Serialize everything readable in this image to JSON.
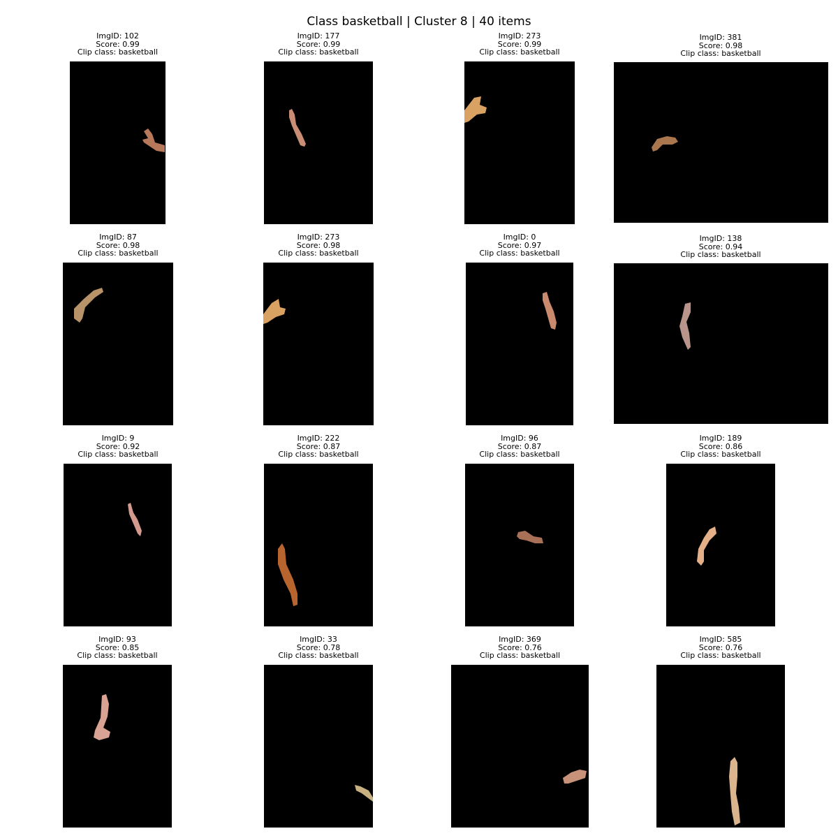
{
  "title": "Class basketball | Cluster 8 | 40 items",
  "tiles": [
    {
      "img_id": "ImgID: 102",
      "score": "Score: 0.99",
      "clip_class": "Clip class: basketball",
      "arm_color": "#b8785a"
    },
    {
      "img_id": "ImgID: 177",
      "score": "Score: 0.99",
      "clip_class": "Clip class: basketball",
      "arm_color": "#c88d74"
    },
    {
      "img_id": "ImgID: 273",
      "score": "Score: 0.99",
      "clip_class": "Clip class: basketball",
      "arm_color": "#d9a262"
    },
    {
      "img_id": "ImgID: 381",
      "score": "Score: 0.98",
      "clip_class": "Clip class: basketball",
      "arm_color": "#a9764e"
    },
    {
      "img_id": "ImgID: 87",
      "score": "Score: 0.98",
      "clip_class": "Clip class: basketball",
      "arm_color": "#b89268"
    },
    {
      "img_id": "ImgID: 273",
      "score": "Score: 0.98",
      "clip_class": "Clip class: basketball",
      "arm_color": "#d9a262"
    },
    {
      "img_id": "ImgID: 0",
      "score": "Score: 0.97",
      "clip_class": "Clip class: basketball",
      "arm_color": "#c98a6e"
    },
    {
      "img_id": "ImgID: 138",
      "score": "Score: 0.94",
      "clip_class": "Clip class: basketball",
      "arm_color": "#b8948a"
    },
    {
      "img_id": "ImgID: 9",
      "score": "Score: 0.92",
      "clip_class": "Clip class: basketball",
      "arm_color": "#d49a8e"
    },
    {
      "img_id": "ImgID: 222",
      "score": "Score: 0.87",
      "clip_class": "Clip class: basketball",
      "arm_color": "#b8642f"
    },
    {
      "img_id": "ImgID: 96",
      "score": "Score: 0.87",
      "clip_class": "Clip class: basketball",
      "arm_color": "#a97058"
    },
    {
      "img_id": "ImgID: 189",
      "score": "Score: 0.86",
      "clip_class": "Clip class: basketball",
      "arm_color": "#e4b08a"
    },
    {
      "img_id": "ImgID: 93",
      "score": "Score: 0.85",
      "clip_class": "Clip class: basketball",
      "arm_color": "#c9b080"
    },
    {
      "img_id": "ImgID: 33",
      "score": "Score: 0.78",
      "clip_class": "Clip class: basketball",
      "arm_color": "#d8a294"
    },
    {
      "img_id": "ImgID: 369",
      "score": "Score: 0.76",
      "clip_class": "Clip class: basketball",
      "arm_color": "#c8927a"
    },
    {
      "img_id": "ImgID: 585",
      "score": "Score: 0.76",
      "clip_class": "Clip class: basketball",
      "arm_color": "#d9b48c"
    }
  ]
}
